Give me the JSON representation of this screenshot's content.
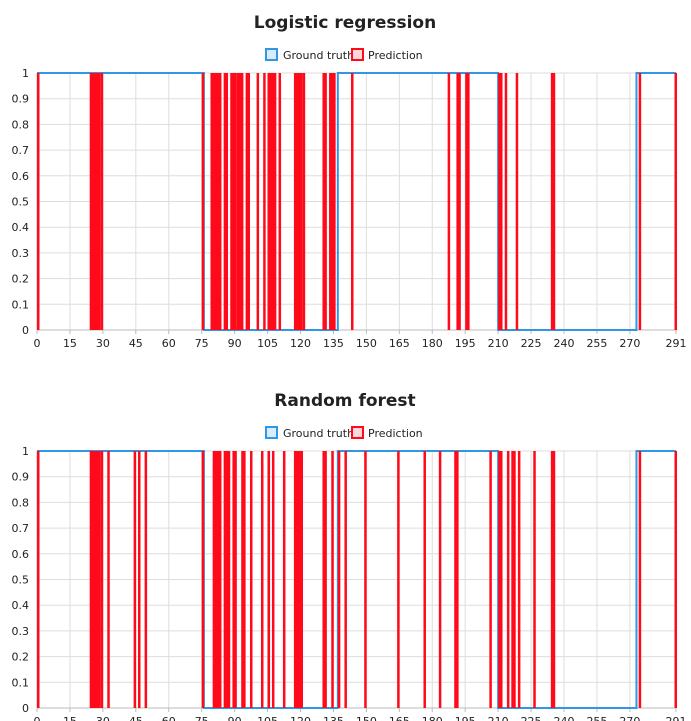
{
  "colors": {
    "truth": "#2f97e6",
    "prediction": "#ff0a1a",
    "grid": "#dddddd",
    "axis": "#bbbbbb"
  },
  "chart_data": [
    {
      "type": "line",
      "title": "Logistic regression",
      "legend": [
        "Ground truth",
        "Prediction"
      ],
      "legend_position": "top-center",
      "grid": true,
      "xlim": [
        0,
        291
      ],
      "ylim": [
        0,
        1
      ],
      "x_ticks": [
        0,
        15,
        30,
        45,
        60,
        75,
        90,
        105,
        120,
        135,
        150,
        165,
        180,
        195,
        210,
        225,
        240,
        255,
        270,
        291
      ],
      "y_ticks": [
        0,
        0.1,
        0.2,
        0.3,
        0.4,
        0.5,
        0.6,
        0.7,
        0.8,
        0.9,
        1
      ],
      "series": [
        {
          "name": "Ground truth",
          "segments": [
            [
              0,
              76,
              1
            ],
            [
              76,
              137,
              0
            ],
            [
              137,
              210,
              1
            ],
            [
              210,
              273,
              0
            ],
            [
              273,
              291,
              1
            ]
          ]
        },
        {
          "name": "Prediction",
          "positive_ranges": [
            [
              0,
              1
            ],
            [
              24,
              29
            ],
            [
              29,
              30
            ],
            [
              75,
              76
            ],
            [
              79,
              84
            ],
            [
              85,
              87
            ],
            [
              88,
              91
            ],
            [
              91,
              94
            ],
            [
              95,
              97
            ],
            [
              100,
              101
            ],
            [
              103,
              104
            ],
            [
              105,
              109
            ],
            [
              110,
              111
            ],
            [
              117,
              121
            ],
            [
              121,
              122
            ],
            [
              130,
              132
            ],
            [
              133,
              136
            ],
            [
              143,
              144
            ],
            [
              187,
              188
            ],
            [
              191,
              193
            ],
            [
              195,
              197
            ],
            [
              210,
              212
            ],
            [
              213,
              214
            ],
            [
              218,
              219
            ],
            [
              234,
              236
            ],
            [
              274,
              275
            ],
            [
              291,
              292
            ]
          ]
        }
      ]
    },
    {
      "type": "line",
      "title": "Random forest",
      "legend": [
        "Ground truth",
        "Prediction"
      ],
      "legend_position": "top-center",
      "grid": true,
      "xlim": [
        0,
        291
      ],
      "ylim": [
        0,
        1
      ],
      "x_ticks": [
        0,
        15,
        30,
        45,
        60,
        75,
        90,
        105,
        120,
        135,
        150,
        165,
        180,
        195,
        210,
        225,
        240,
        255,
        270,
        291
      ],
      "y_ticks": [
        0,
        0.1,
        0.2,
        0.3,
        0.4,
        0.5,
        0.6,
        0.7,
        0.8,
        0.9,
        1
      ],
      "series": [
        {
          "name": "Ground truth",
          "segments": [
            [
              0,
              76,
              1
            ],
            [
              76,
              137,
              0
            ],
            [
              137,
              210,
              1
            ],
            [
              210,
              273,
              0
            ],
            [
              273,
              291,
              1
            ]
          ]
        },
        {
          "name": "Prediction",
          "positive_ranges": [
            [
              0,
              1
            ],
            [
              24,
              29
            ],
            [
              29,
              30
            ],
            [
              32,
              33
            ],
            [
              44,
              45
            ],
            [
              46,
              47
            ],
            [
              49,
              50
            ],
            [
              75,
              76
            ],
            [
              80,
              84
            ],
            [
              85,
              88
            ],
            [
              89,
              91
            ],
            [
              93,
              95
            ],
            [
              97,
              98
            ],
            [
              102,
              103
            ],
            [
              105,
              106
            ],
            [
              107,
              108
            ],
            [
              112,
              113
            ],
            [
              117,
              120
            ],
            [
              120,
              121
            ],
            [
              130,
              132
            ],
            [
              134,
              135
            ],
            [
              137,
              138
            ],
            [
              140,
              141
            ],
            [
              149,
              150
            ],
            [
              164,
              165
            ],
            [
              176,
              177
            ],
            [
              183,
              184
            ],
            [
              190,
              192
            ],
            [
              206,
              207
            ],
            [
              210,
              212
            ],
            [
              214,
              215
            ],
            [
              216,
              218
            ],
            [
              219,
              220
            ],
            [
              226,
              227
            ],
            [
              234,
              236
            ],
            [
              274,
              275
            ],
            [
              291,
              292
            ]
          ]
        }
      ]
    }
  ]
}
